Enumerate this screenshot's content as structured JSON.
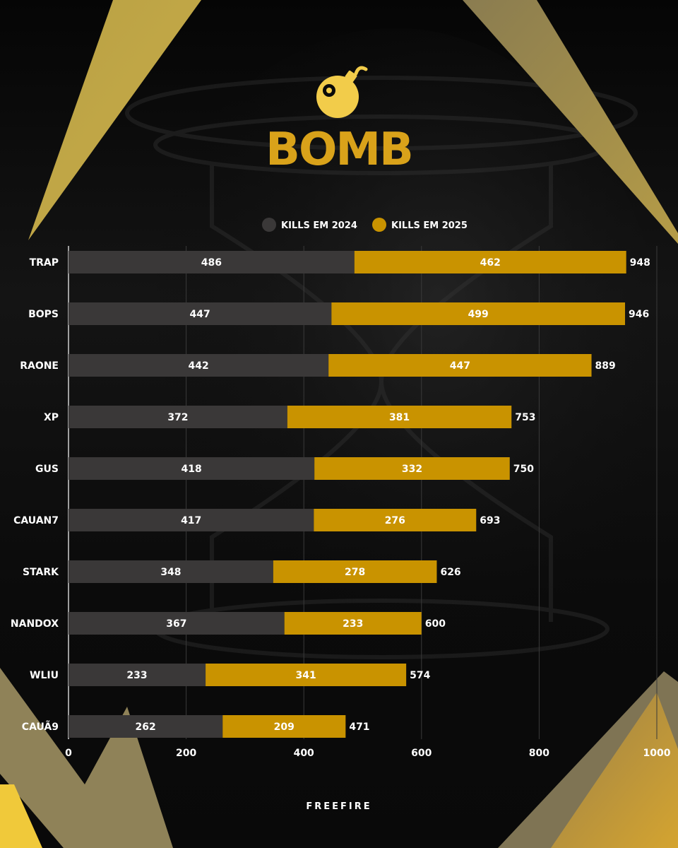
{
  "colors": {
    "series_2024": "#3a3838",
    "series_2025": "#c99300",
    "title": "#d9a21a",
    "accent": "#f2cc4a",
    "background": "#0a0a0a"
  },
  "header": {
    "logo_icon": "bomb-icon",
    "title": "BOMB"
  },
  "footer": {
    "brand": "FREEFIRE"
  },
  "chart_data": {
    "type": "bar",
    "orientation": "horizontal",
    "stacked": true,
    "title": "BOMB",
    "categories": [
      "TRAP",
      "BOPS",
      "RAONE",
      "XP",
      "GUS",
      "CAUAN7",
      "STARK",
      "NANDOX",
      "WLIU",
      "CAUÃ9"
    ],
    "series": [
      {
        "name": "KILLS EM 2024",
        "values": [
          486,
          447,
          442,
          372,
          418,
          417,
          348,
          367,
          233,
          262
        ]
      },
      {
        "name": "KILLS EM 2025",
        "values": [
          462,
          499,
          447,
          381,
          332,
          276,
          278,
          233,
          341,
          209
        ]
      }
    ],
    "totals": [
      948,
      946,
      889,
      753,
      750,
      693,
      626,
      600,
      574,
      471
    ],
    "xlim": [
      0,
      1000
    ],
    "xticks": [
      0,
      200,
      400,
      600,
      800,
      1000
    ],
    "grid": true,
    "legend_position": "top",
    "xlabel": "",
    "ylabel": ""
  }
}
